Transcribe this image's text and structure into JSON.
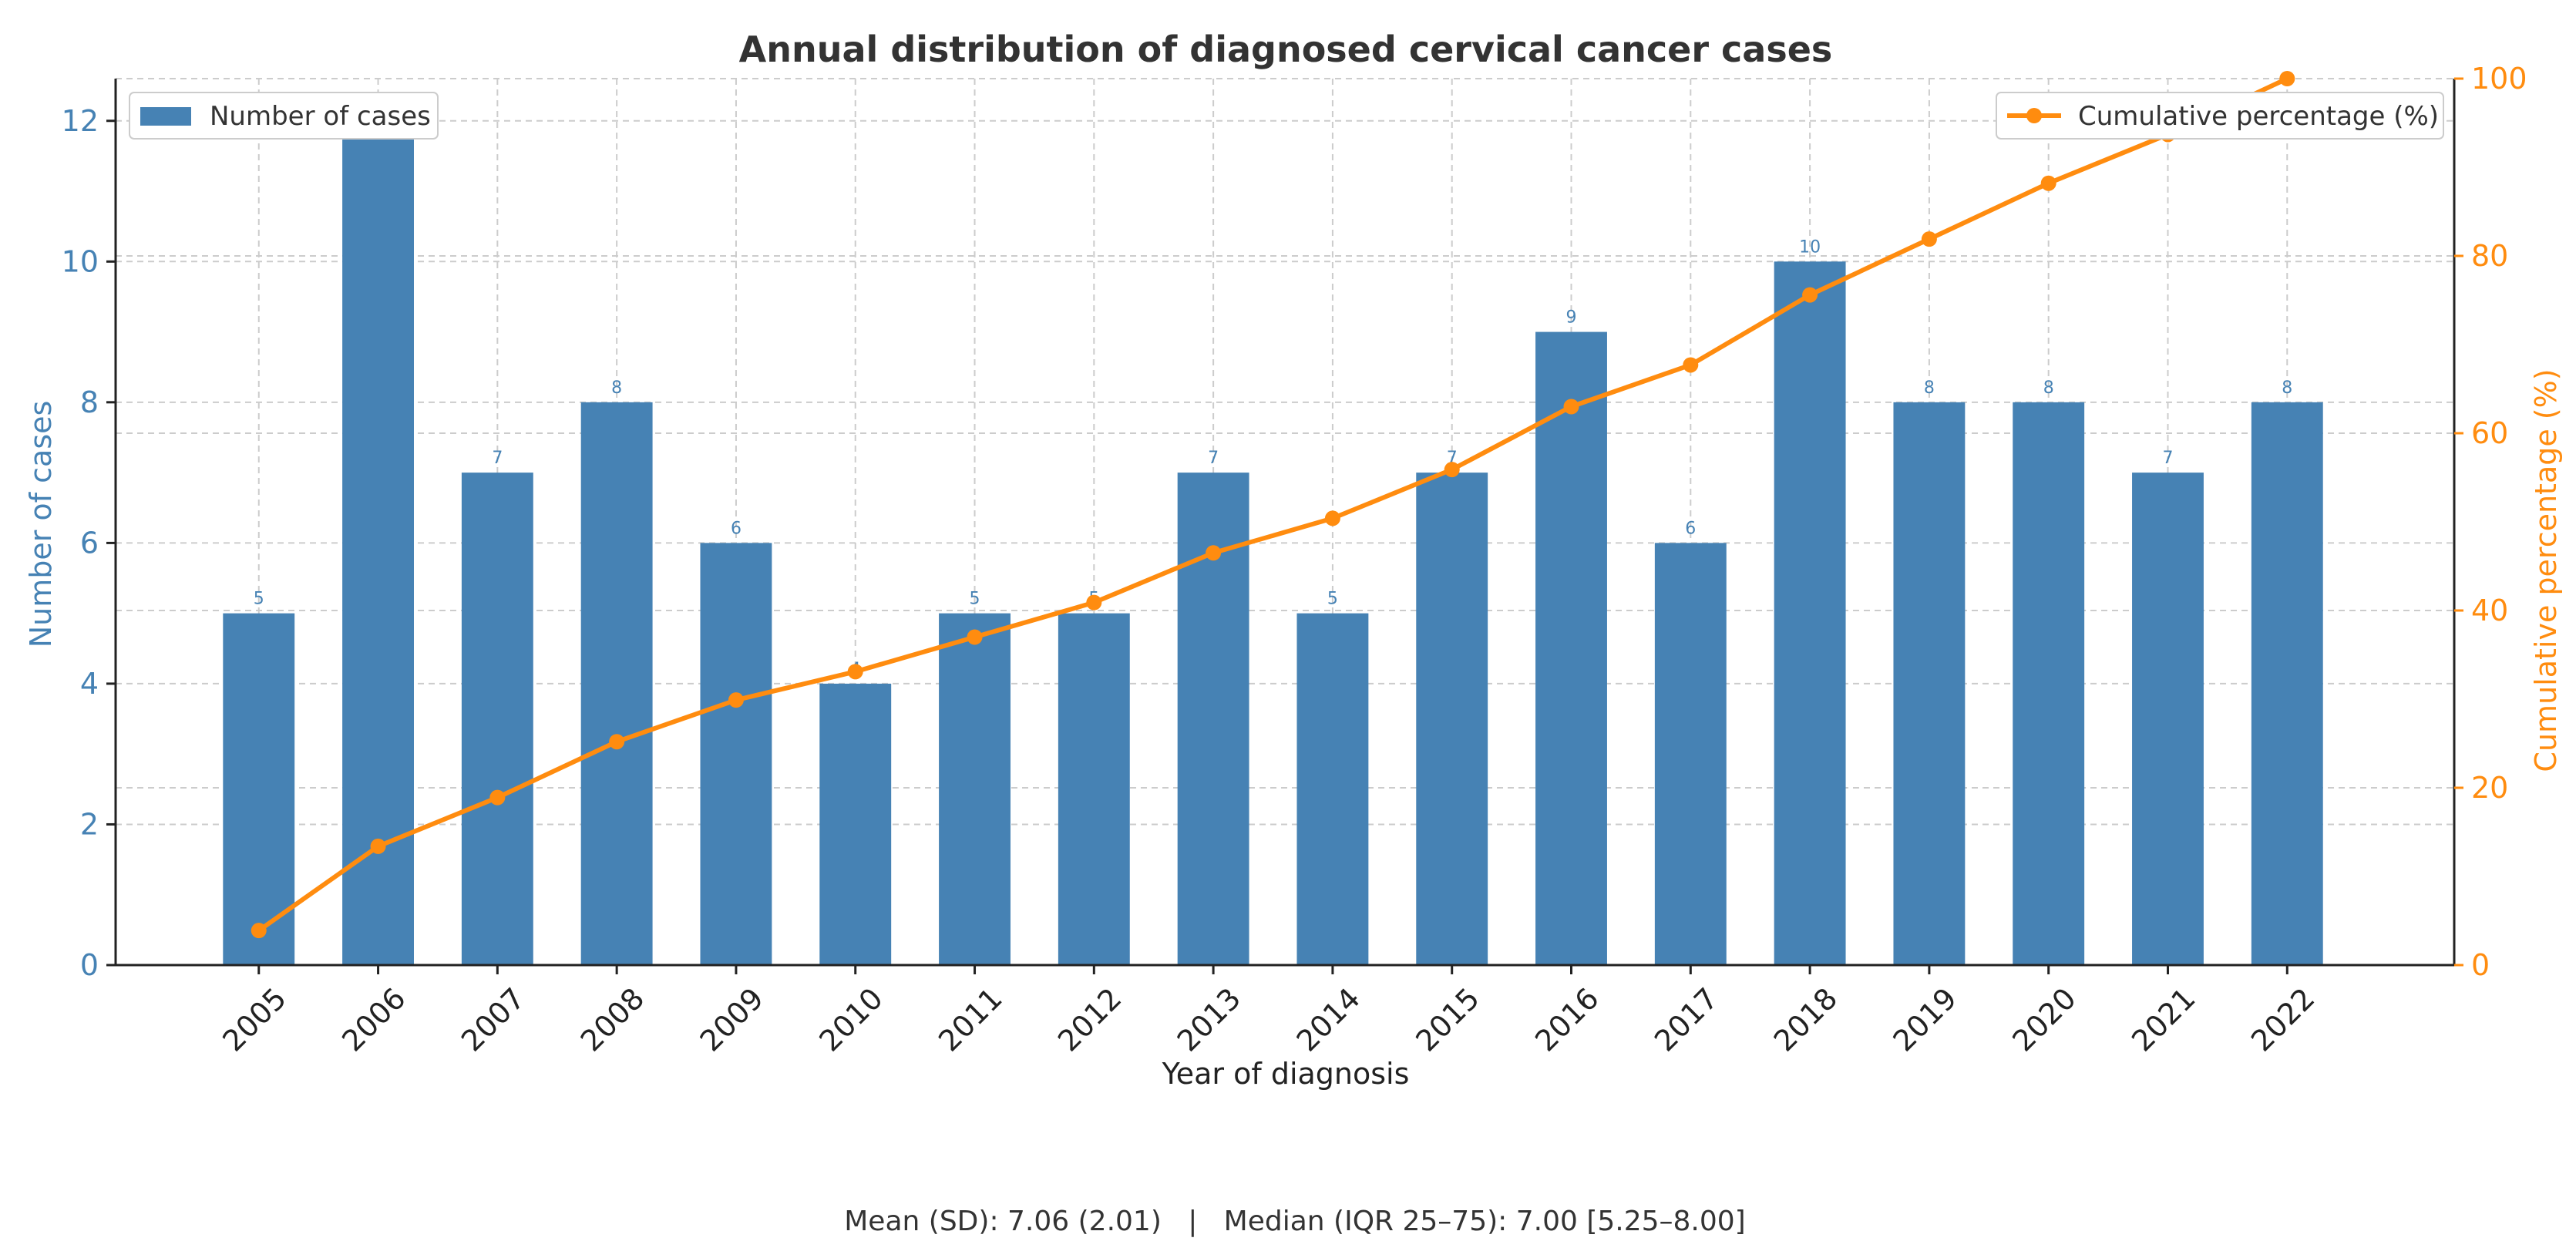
{
  "chart_data": {
    "type": "bar+line",
    "title": "Annual distribution of diagnosed cervical cancer cases",
    "xlabel": "Year of diagnosis",
    "ylabel_left": "Number of cases",
    "ylabel_right": "Cumulative percentage (%)",
    "categories": [
      "2005",
      "2006",
      "2007",
      "2008",
      "2009",
      "2010",
      "2011",
      "2012",
      "2013",
      "2014",
      "2015",
      "2016",
      "2017",
      "2018",
      "2019",
      "2020",
      "2021",
      "2022"
    ],
    "series": [
      {
        "name": "Number of cases",
        "type": "bar",
        "axis": "left",
        "values": [
          5,
          12,
          7,
          8,
          6,
          4,
          5,
          5,
          7,
          5,
          7,
          9,
          6,
          10,
          8,
          8,
          7,
          8
        ]
      },
      {
        "name": "Cumulative percentage (%)",
        "type": "line",
        "axis": "right",
        "values": [
          3.9,
          13.4,
          18.9,
          25.2,
          29.9,
          33.1,
          37.0,
          40.9,
          46.5,
          50.4,
          55.9,
          63.0,
          67.7,
          75.6,
          81.9,
          88.2,
          93.7,
          100.0
        ]
      }
    ],
    "ylim_left": [
      0,
      12.6
    ],
    "ylim_right": [
      0,
      100
    ],
    "yticks_left": [
      0,
      2,
      4,
      6,
      8,
      10,
      12
    ],
    "yticks_right": [
      0,
      20,
      40,
      60,
      80,
      100
    ],
    "legend_left": {
      "label": "Number of cases",
      "placement": "top-left"
    },
    "legend_right": {
      "label": "Cumulative percentage (%)",
      "placement": "top-right"
    },
    "grid": true,
    "colors": {
      "bar": "#4682b4",
      "line": "#ff8c0f",
      "axis": "#222222",
      "grid": "#cccccc",
      "text": "#333333"
    }
  },
  "summary": "Mean (SD): 7.06 (2.01)   |   Median (IQR 25–75): 7.00 [5.25–8.00]"
}
